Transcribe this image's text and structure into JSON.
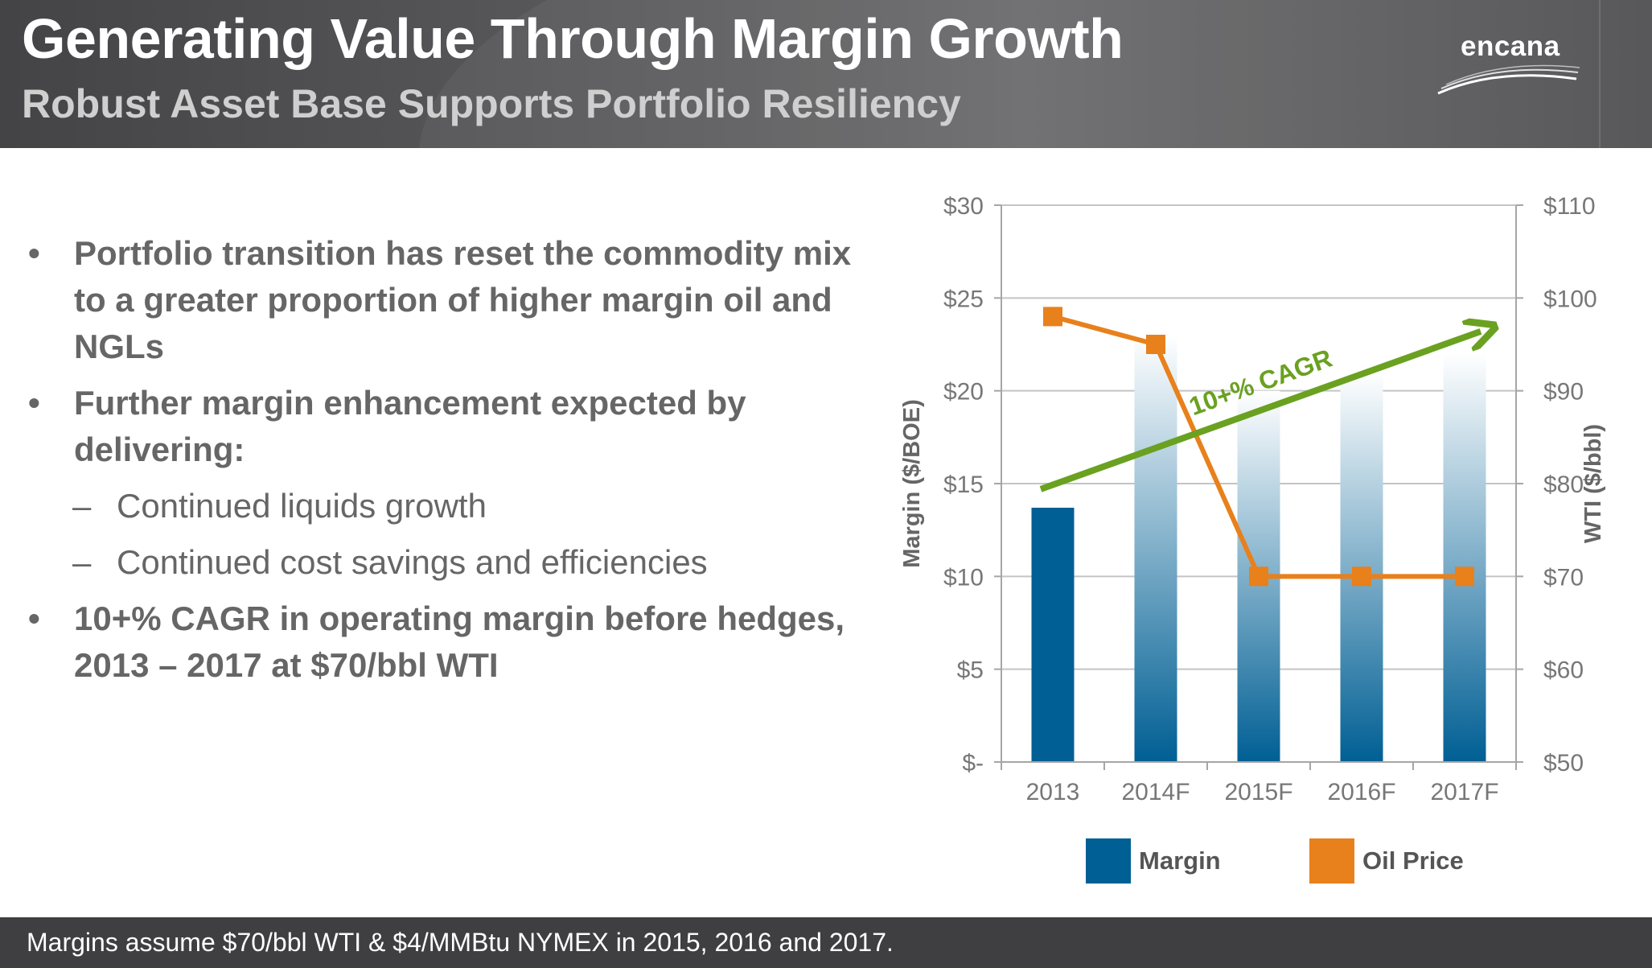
{
  "header": {
    "title": "Generating Value Through Margin Growth",
    "subtitle": "Robust Asset Base Supports Portfolio Resiliency",
    "logo_text": "encana"
  },
  "bullets": [
    {
      "level": 1,
      "marker": "•",
      "text": "Portfolio transition has reset the commodity mix to a greater proportion of higher margin oil and NGLs"
    },
    {
      "level": 1,
      "marker": "•",
      "text": "Further margin enhancement expected by delivering:"
    },
    {
      "level": 2,
      "marker": "–",
      "text": "Continued liquids growth"
    },
    {
      "level": 2,
      "marker": "–",
      "text": "Continued cost savings and efficiencies"
    },
    {
      "level": 1,
      "marker": "•",
      "text": "10+% CAGR in operating margin before hedges, 2013 – 2017 at $70/bbl WTI"
    }
  ],
  "chart_data": {
    "type": "bar",
    "categories": [
      "2013",
      "2014F",
      "2015F",
      "2016F",
      "2017F"
    ],
    "series": [
      {
        "name": "Margin",
        "type": "bar",
        "axis": "left",
        "color": "#005f94",
        "values": [
          13.7,
          23,
          20,
          21,
          22
        ]
      },
      {
        "name": "Oil Price",
        "type": "line",
        "axis": "right",
        "color": "#e8801c",
        "values": [
          98,
          95,
          70,
          70,
          70
        ]
      }
    ],
    "ylabel": "Margin ($/BOE)",
    "ylim": [
      0,
      30
    ],
    "yticks": [
      0,
      5,
      10,
      15,
      20,
      25,
      30
    ],
    "ytick_labels": [
      "$-",
      "$5",
      "$10",
      "$15",
      "$20",
      "$25",
      "$30"
    ],
    "y2label": "WTI ($/bbl)",
    "y2lim": [
      50,
      110
    ],
    "y2ticks": [
      50,
      60,
      70,
      80,
      90,
      100,
      110
    ],
    "y2tick_labels": [
      "$50",
      "$60",
      "$70",
      "$80",
      "$90",
      "$100",
      "$110"
    ],
    "grid": true,
    "legend_position": "bottom",
    "annotation": {
      "text": "10+% CAGR",
      "color": "#6aa121",
      "from_value": 14.7,
      "to_value": 23.2
    }
  },
  "footer": {
    "note": "Margins assume $70/bbl WTI & $4/MMBtu NYMEX in 2015, 2016 and 2017."
  },
  "colors": {
    "header_bg": "#545456",
    "footer_bg": "#3f3f41",
    "margin_bar": "#005f94",
    "oil_price_line": "#e8801c",
    "cagr_arrow": "#6aa121",
    "body_text": "#666666"
  }
}
